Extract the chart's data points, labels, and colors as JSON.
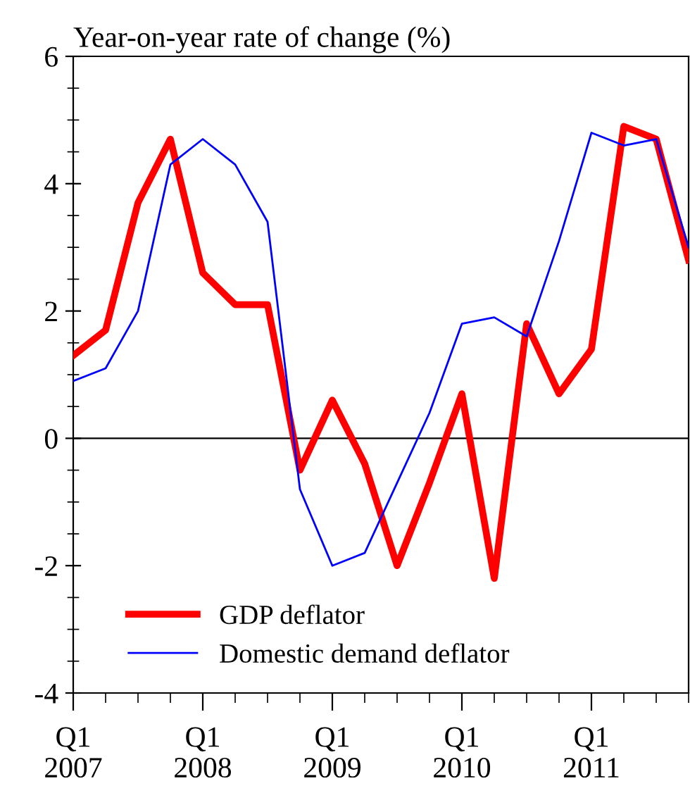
{
  "chart_data": {
    "type": "line",
    "title": "Year-on-year rate of change (%)",
    "categories": [
      "Q1\n2007",
      null,
      null,
      null,
      "Q1\n2008",
      null,
      null,
      null,
      "Q1\n2009",
      null,
      null,
      null,
      "Q1\n2010",
      null,
      null,
      null,
      "Q1\n2011",
      null,
      null,
      null
    ],
    "series": [
      {
        "name": "GDP deflator",
        "color": "#ff0000",
        "values": [
          1.3,
          1.7,
          3.7,
          4.7,
          2.6,
          2.1,
          2.1,
          -0.5,
          0.6,
          -0.4,
          -2.0,
          -0.7,
          0.7,
          -2.2,
          1.8,
          0.7,
          1.4,
          4.9,
          4.7,
          2.8
        ]
      },
      {
        "name": "Domestic demand deflator",
        "color": "#0000ff",
        "values": [
          0.9,
          1.1,
          2.0,
          4.3,
          4.7,
          4.3,
          3.4,
          -0.8,
          -2.0,
          -1.8,
          -0.7,
          0.4,
          1.8,
          1.9,
          1.6,
          3.1,
          4.8,
          4.6,
          4.7,
          3.0
        ]
      }
    ],
    "ylim": [
      -4,
      6
    ],
    "yticks": [
      -4,
      -2,
      0,
      2,
      4,
      6
    ],
    "ref_lines": [
      {
        "axis": "y",
        "value": 0,
        "color": "#000000"
      }
    ],
    "legend": "bottom left",
    "grid": false,
    "marker": "none",
    "line_style": "solid"
  }
}
